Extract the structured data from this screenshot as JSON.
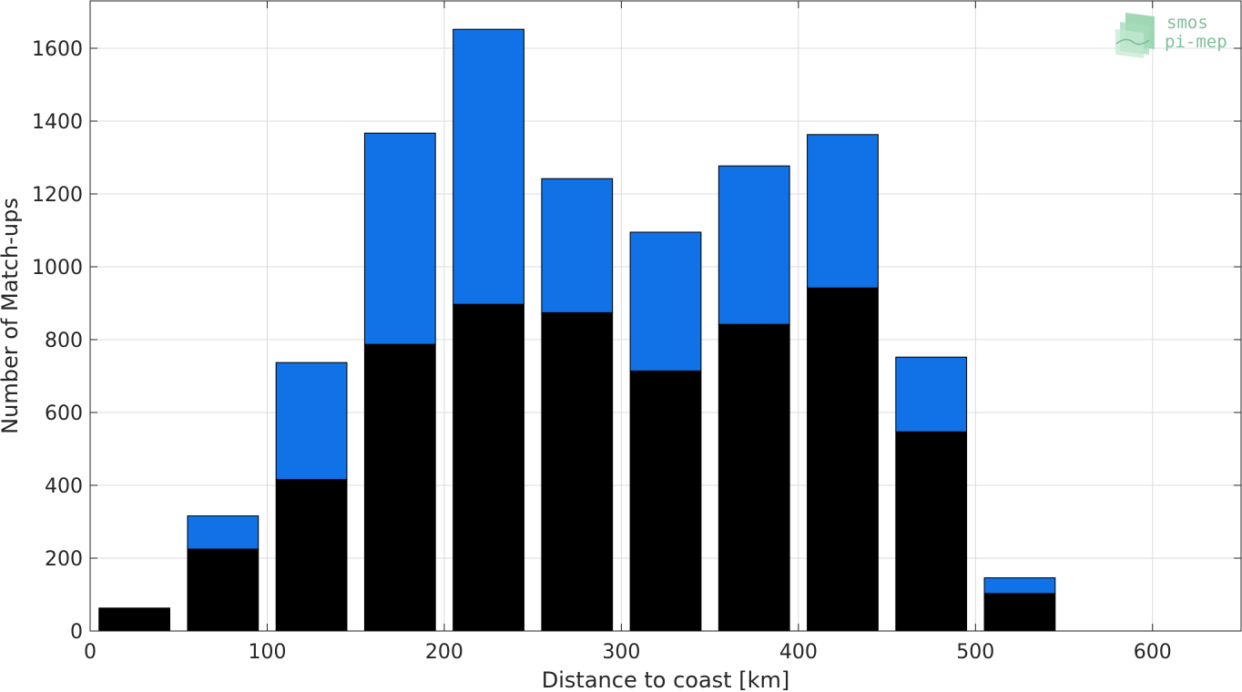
{
  "chart_data": {
    "type": "bar",
    "stacked": true,
    "title": "",
    "xlabel": "Distance to coast [km]",
    "ylabel": "Number of Match-ups",
    "xlim": [
      0,
      650
    ],
    "ylim": [
      0,
      1730
    ],
    "x_ticks": [
      0,
      100,
      200,
      300,
      400,
      500,
      600
    ],
    "y_ticks": [
      0,
      200,
      400,
      600,
      800,
      1000,
      1200,
      1400,
      1600
    ],
    "grid": true,
    "bin_width": 50,
    "x": [
      25,
      75,
      125,
      175,
      225,
      275,
      325,
      375,
      425,
      475,
      525
    ],
    "series": [
      {
        "color": "#000000",
        "values": [
          63,
          225,
          416,
          787,
          897,
          874,
          714,
          842,
          942,
          547,
          103
        ]
      },
      {
        "color": "#1072e6",
        "values": [
          0,
          91,
          321,
          580,
          755,
          368,
          381,
          435,
          421,
          205,
          43
        ]
      }
    ],
    "logo": {
      "line1": "smos",
      "line2": "pi-mep"
    }
  }
}
